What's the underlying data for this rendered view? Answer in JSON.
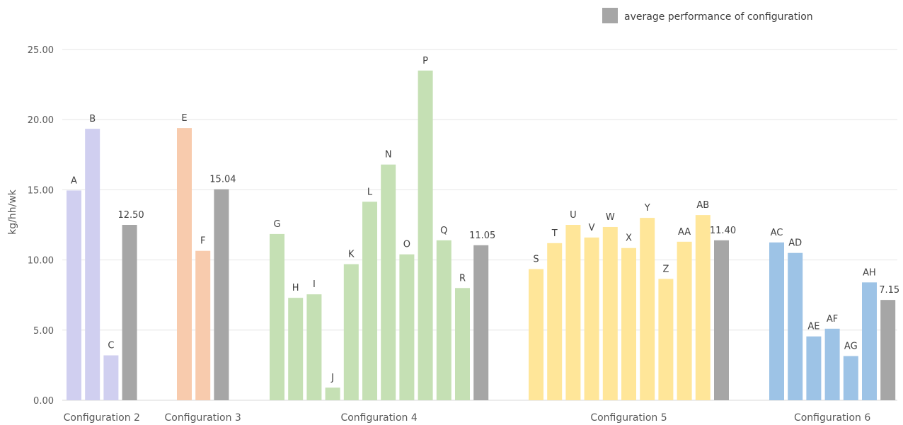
{
  "chart_data": {
    "type": "bar",
    "ylabel": "kg/hh/wk",
    "ylim": [
      0,
      25
    ],
    "yticks": [
      "0.00",
      "5.00",
      "10.00",
      "15.00",
      "20.00",
      "25.00"
    ],
    "grid": true,
    "legend": {
      "label": "average performance of configuration",
      "color": "#a6a6a6",
      "position": "top-right"
    },
    "groups": [
      {
        "name": "Configuration 2",
        "color": "#d0cff0",
        "bars": [
          {
            "label": "A",
            "value": 14.95
          },
          {
            "label": "B",
            "value": 19.35
          },
          {
            "label": "C",
            "value": 3.2
          }
        ],
        "average": {
          "value": 12.5,
          "label": "12.50"
        }
      },
      {
        "name": "Configuration 3",
        "color": "#f8cbad",
        "bars": [
          {
            "label": "E",
            "value": 19.4
          },
          {
            "label": "F",
            "value": 10.65
          }
        ],
        "average": {
          "value": 15.04,
          "label": "15.04"
        }
      },
      {
        "name": "Configuration 4",
        "color": "#c5e0b4",
        "bars": [
          {
            "label": "G",
            "value": 11.85
          },
          {
            "label": "H",
            "value": 7.3
          },
          {
            "label": "I",
            "value": 7.55
          },
          {
            "label": "J",
            "value": 0.9
          },
          {
            "label": "K",
            "value": 9.7
          },
          {
            "label": "L",
            "value": 14.15
          },
          {
            "label": "N",
            "value": 16.8
          },
          {
            "label": "O",
            "value": 10.4
          },
          {
            "label": "P",
            "value": 23.5
          },
          {
            "label": "Q",
            "value": 11.4
          },
          {
            "label": "R",
            "value": 8.0
          }
        ],
        "average": {
          "value": 11.05,
          "label": "11.05"
        }
      },
      {
        "name": "Configuration 5",
        "color": "#ffe699",
        "bars": [
          {
            "label": "S",
            "value": 9.35
          },
          {
            "label": "T",
            "value": 11.2
          },
          {
            "label": "U",
            "value": 12.5
          },
          {
            "label": "V",
            "value": 11.6
          },
          {
            "label": "W",
            "value": 12.35
          },
          {
            "label": "X",
            "value": 10.85
          },
          {
            "label": "Y",
            "value": 13.0
          },
          {
            "label": "Z",
            "value": 8.65
          },
          {
            "label": "AA",
            "value": 11.3
          },
          {
            "label": "AB",
            "value": 13.2
          }
        ],
        "average": {
          "value": 11.4,
          "label": "11.40"
        }
      },
      {
        "name": "Configuration 6",
        "color": "#9dc3e6",
        "bars": [
          {
            "label": "AC",
            "value": 11.25
          },
          {
            "label": "AD",
            "value": 10.5
          },
          {
            "label": "AE",
            "value": 4.55
          },
          {
            "label": "AF",
            "value": 5.1
          },
          {
            "label": "AG",
            "value": 3.15
          },
          {
            "label": "AH",
            "value": 8.4
          }
        ],
        "average": {
          "value": 7.15,
          "label": "7.15"
        }
      }
    ]
  }
}
